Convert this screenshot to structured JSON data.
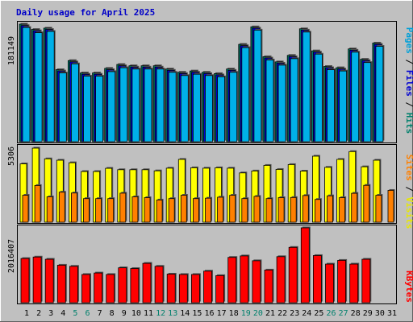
{
  "chart_data": {
    "type": "bar",
    "title": "Daily usage for April 2025",
    "categories": [
      "1",
      "2",
      "3",
      "4",
      "5",
      "6",
      "7",
      "8",
      "9",
      "10",
      "11",
      "12",
      "13",
      "14",
      "15",
      "16",
      "17",
      "18",
      "19",
      "20",
      "21",
      "22",
      "23",
      "24",
      "25",
      "26",
      "27",
      "28",
      "29",
      "30",
      "31"
    ],
    "weekend_days": [
      "5",
      "6",
      "12",
      "13",
      "19",
      "20",
      "26",
      "27"
    ],
    "panels": [
      {
        "name": "hits-files-pages",
        "max_label": "181149",
        "ylim": [
          0,
          181149
        ],
        "side_label": [
          "Pages",
          " / ",
          "Files",
          " / ",
          "Hits"
        ],
        "side_colors": [
          "#00a0d8",
          "#000000",
          "#0000d0",
          "#000000",
          "#00806c"
        ],
        "series": [
          {
            "key": "hits",
            "color": "#00806c",
            "values": [
              181149,
              173000,
              175000,
              111000,
              125000,
              106000,
              106000,
              113000,
              119000,
              117000,
              117000,
              117000,
              112000,
              107000,
              109000,
              107000,
              105000,
              112000,
              150000,
              177000,
              131000,
              123000,
              133000,
              174000,
              140000,
              116000,
              114000,
              143000,
              127000,
              152000,
              0
            ]
          },
          {
            "key": "files",
            "color": "#0000d0",
            "values": [
              179000,
              171000,
              173000,
              109000,
              123000,
              104000,
              104000,
              111000,
              117000,
              115000,
              115000,
              115000,
              110000,
              105000,
              107000,
              105000,
              103000,
              110000,
              148000,
              175000,
              129000,
              121000,
              131000,
              172000,
              138000,
              114000,
              112000,
              141000,
              125000,
              150000,
              0
            ]
          },
          {
            "key": "pages",
            "color": "#00b0e8",
            "values": [
              176000,
              168000,
              170000,
              106000,
              120000,
              101000,
              101000,
              108000,
              114000,
              112000,
              112000,
              112000,
              107000,
              102000,
              104000,
              102000,
              100000,
              107000,
              145000,
              172000,
              126000,
              118000,
              128000,
              169000,
              135000,
              111000,
              109000,
              138000,
              122000,
              147000,
              0
            ]
          }
        ]
      },
      {
        "name": "visits-sites",
        "max_label": "5306",
        "ylim": [
          0,
          5306
        ],
        "side_label": [
          "Sites",
          " / ",
          "Visits"
        ],
        "side_colors": [
          "#ff8000",
          "#000000",
          "#e8e800"
        ],
        "series": [
          {
            "key": "visits",
            "color": "#ffff00",
            "values": [
              4180,
              5306,
              4540,
              4440,
              4260,
              3630,
              3630,
              3860,
              3760,
              3760,
              3760,
              3680,
              3870,
              4500,
              3900,
              3870,
              3900,
              3870,
              3530,
              3670,
              4070,
              3780,
              4130,
              3660,
              4730,
              3930,
              4500,
              5060,
              3970,
              4440,
              0
            ]
          },
          {
            "key": "sites",
            "color": "#ff8000",
            "values": [
              1930,
              2630,
              1820,
              2150,
              2090,
              1690,
              1690,
              1690,
              2080,
              1820,
              1760,
              1590,
              1690,
              1930,
              1690,
              1720,
              1790,
              1930,
              1690,
              1850,
              1690,
              1760,
              1770,
              1910,
              1630,
              1890,
              1760,
              2070,
              2640,
              1930,
              2280
            ]
          }
        ]
      },
      {
        "name": "kbytes",
        "max_label": "2016407",
        "ylim": [
          0,
          2016407
        ],
        "side_label": [
          "KBytes"
        ],
        "side_colors": [
          "#ff0000"
        ],
        "series": [
          {
            "key": "kbytes",
            "color": "#ff0000",
            "values": [
              1190000,
              1230000,
              1170000,
              1010000,
              980000,
              760000,
              800000,
              760000,
              940000,
              920000,
              1060000,
              980000,
              770000,
              760000,
              760000,
              850000,
              730000,
              1220000,
              1260000,
              1130000,
              880000,
              1240000,
              1490000,
              2016407,
              1270000,
              1040000,
              1140000,
              1040000,
              1170000,
              0,
              0
            ]
          }
        ]
      }
    ]
  }
}
